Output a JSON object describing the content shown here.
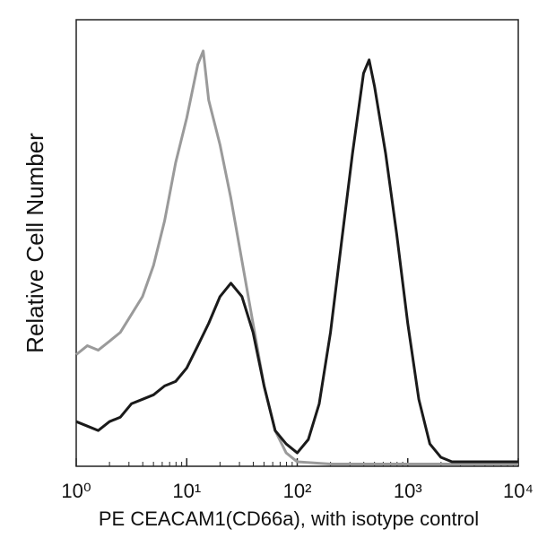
{
  "chart_data": {
    "type": "line",
    "x_label": "PE CEACAM1(CD66a), with isotype control",
    "y_label": "Relative Cell Number",
    "xscale": "log",
    "xlim": [
      1,
      10000
    ],
    "xticks": [
      {
        "value": 1,
        "label": "10⁰"
      },
      {
        "value": 10,
        "label": "10¹"
      },
      {
        "value": 100,
        "label": "10²"
      },
      {
        "value": 1000,
        "label": "10³"
      },
      {
        "value": 10000,
        "label": "10⁴"
      }
    ],
    "ylim": [
      0,
      100
    ],
    "series": [
      {
        "color": "#9a9a9a",
        "x": [
          1,
          1.26,
          1.58,
          2,
          2.51,
          3.16,
          3.98,
          5.01,
          6.31,
          7.94,
          10,
          12.6,
          14.1,
          15.8,
          20,
          25.1,
          31.6,
          39.8,
          50.1,
          63.1,
          79.4,
          100,
          200,
          1000,
          10000
        ],
        "values": [
          25,
          27,
          26,
          28,
          30,
          34,
          38,
          45,
          55,
          68,
          78,
          90,
          93,
          82,
          72,
          60,
          46,
          32,
          18,
          8,
          3,
          1,
          0.5,
          0.5,
          0.5
        ]
      },
      {
        "color": "#1a1a1a",
        "x": [
          1,
          1.26,
          1.58,
          2,
          2.51,
          3.16,
          3.98,
          5.01,
          6.31,
          7.94,
          10,
          12.6,
          15.8,
          20,
          25.1,
          31.6,
          39.8,
          50.1,
          63.1,
          79.4,
          100,
          126,
          158,
          200,
          251,
          316,
          398,
          447,
          501,
          631,
          794,
          1000,
          1259,
          1585,
          1995,
          2512,
          5000,
          10000
        ],
        "values": [
          10,
          9,
          8,
          10,
          11,
          14,
          15,
          16,
          18,
          19,
          22,
          27,
          32,
          38,
          41,
          38,
          30,
          18,
          8,
          5,
          3,
          6,
          14,
          30,
          50,
          70,
          88,
          91,
          85,
          70,
          52,
          32,
          15,
          5,
          2,
          1,
          1,
          1
        ]
      }
    ]
  }
}
